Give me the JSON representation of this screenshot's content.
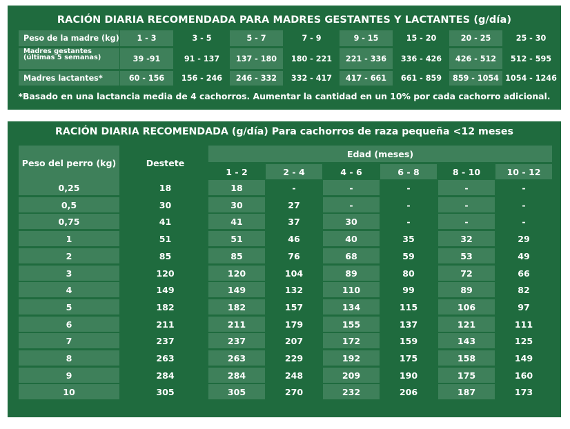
{
  "table1": {
    "title": "RACIÓN DIARIA RECOMENDADA PARA MADRES GESTANTES Y LACTANTES (g/día)",
    "rows": [
      {
        "label": "Peso de la madre (kg)",
        "values": [
          "1 - 3",
          "3 - 5",
          "5 - 7",
          "7 - 9",
          "9 - 15",
          "15 - 20",
          "20 - 25",
          "25 - 30"
        ]
      },
      {
        "label_line1": "Madres gestantes",
        "label_line2": "(últimas 5 semanas)",
        "values": [
          "39 -91",
          "91 - 137",
          "137 - 180",
          "180 - 221",
          "221 - 336",
          "336 - 426",
          "426 - 512",
          "512 - 595"
        ]
      },
      {
        "label": "Madres lactantes*",
        "values": [
          "60 - 156",
          "156 - 246",
          "246 - 332",
          "332 - 417",
          "417 - 661",
          "661 - 859",
          "859 - 1054",
          "1054 - 1246"
        ]
      }
    ],
    "note": "*Basado en una lactancia media de 4 cachorros. Aumentar la cantidad en un 10% por cada cachorro adicional."
  },
  "table2": {
    "title": "RACIÓN DIARIA RECOMENDADA (g/día) Para cachorros de raza pequeña <12 meses",
    "col_weight": "Peso del perro (kg)",
    "col_destete": "Destete",
    "col_edad": "Edad (meses)",
    "age_headers": [
      "1 - 2",
      "2 - 4",
      "4 - 6",
      "6 - 8",
      "8 - 10",
      "10 - 12"
    ],
    "rows": [
      {
        "weight": "0,25",
        "destete": "18",
        "values": [
          "18",
          "-",
          "-",
          "-",
          "-",
          "-"
        ]
      },
      {
        "weight": "0,5",
        "destete": "30",
        "values": [
          "30",
          "27",
          "-",
          "-",
          "-",
          "-"
        ]
      },
      {
        "weight": "0,75",
        "destete": "41",
        "values": [
          "41",
          "37",
          "30",
          "-",
          "-",
          "-"
        ]
      },
      {
        "weight": "1",
        "destete": "51",
        "values": [
          "51",
          "46",
          "40",
          "35",
          "32",
          "29"
        ]
      },
      {
        "weight": "2",
        "destete": "85",
        "values": [
          "85",
          "76",
          "68",
          "59",
          "53",
          "49"
        ]
      },
      {
        "weight": "3",
        "destete": "120",
        "values": [
          "120",
          "104",
          "89",
          "80",
          "72",
          "66"
        ]
      },
      {
        "weight": "4",
        "destete": "149",
        "values": [
          "149",
          "132",
          "110",
          "99",
          "89",
          "82"
        ]
      },
      {
        "weight": "5",
        "destete": "182",
        "values": [
          "182",
          "157",
          "134",
          "115",
          "106",
          "97"
        ]
      },
      {
        "weight": "6",
        "destete": "211",
        "values": [
          "211",
          "179",
          "155",
          "137",
          "121",
          "111"
        ]
      },
      {
        "weight": "7",
        "destete": "237",
        "values": [
          "237",
          "207",
          "172",
          "159",
          "143",
          "125"
        ]
      },
      {
        "weight": "8",
        "destete": "263",
        "values": [
          "263",
          "229",
          "192",
          "175",
          "158",
          "149"
        ]
      },
      {
        "weight": "9",
        "destete": "284",
        "values": [
          "284",
          "248",
          "209",
          "190",
          "175",
          "160"
        ]
      },
      {
        "weight": "10",
        "destete": "305",
        "values": [
          "305",
          "270",
          "232",
          "206",
          "187",
          "173"
        ]
      }
    ]
  },
  "colors": {
    "dark_green": "#1f6b3e",
    "light_green": "#3e805a",
    "text": "#ffffff"
  }
}
